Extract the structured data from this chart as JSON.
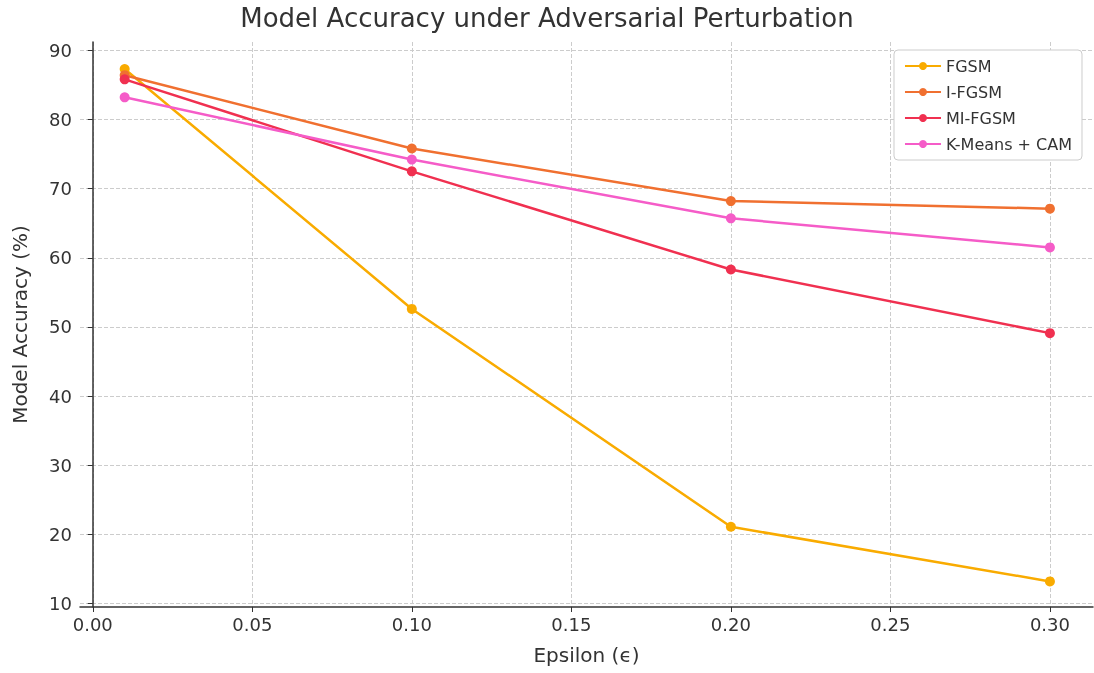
{
  "chart_data": {
    "type": "line",
    "title": "Model Accuracy under Adversarial Perturbation",
    "xlabel": "Epsilon (ϵ)",
    "ylabel": "Model Accuracy (%)",
    "x": [
      0.01,
      0.1,
      0.2,
      0.3
    ],
    "series": [
      {
        "name": "FGSM",
        "color": "#f9ab00",
        "values": [
          87.3,
          52.6,
          21.1,
          13.2
        ]
      },
      {
        "name": "I-FGSM",
        "color": "#f07030",
        "values": [
          86.4,
          75.8,
          68.2,
          67.1
        ]
      },
      {
        "name": "MI-FGSM",
        "color": "#f03050",
        "values": [
          85.8,
          72.5,
          58.3,
          49.1
        ]
      },
      {
        "name": "K-Means + CAM",
        "color": "#f55cc8",
        "values": [
          83.2,
          74.2,
          65.7,
          61.5
        ]
      }
    ],
    "xlim": [
      -0.004,
      0.3135
    ],
    "ylim": [
      9.5,
      91.2
    ],
    "xticks": [
      {
        "value": 0,
        "label": "0.00"
      },
      {
        "value": 0.05,
        "label": "0.05"
      },
      {
        "value": 0.1,
        "label": "0.10"
      },
      {
        "value": 0.15,
        "label": "0.15"
      },
      {
        "value": 0.2,
        "label": "0.20"
      },
      {
        "value": 0.25,
        "label": "0.25"
      },
      {
        "value": 0.3,
        "label": "0.30"
      }
    ],
    "yticks": [
      10,
      20,
      30,
      40,
      50,
      60,
      70,
      80,
      90
    ],
    "grid": true,
    "legend": "top right",
    "marker": "circle",
    "line_style": "solid"
  }
}
